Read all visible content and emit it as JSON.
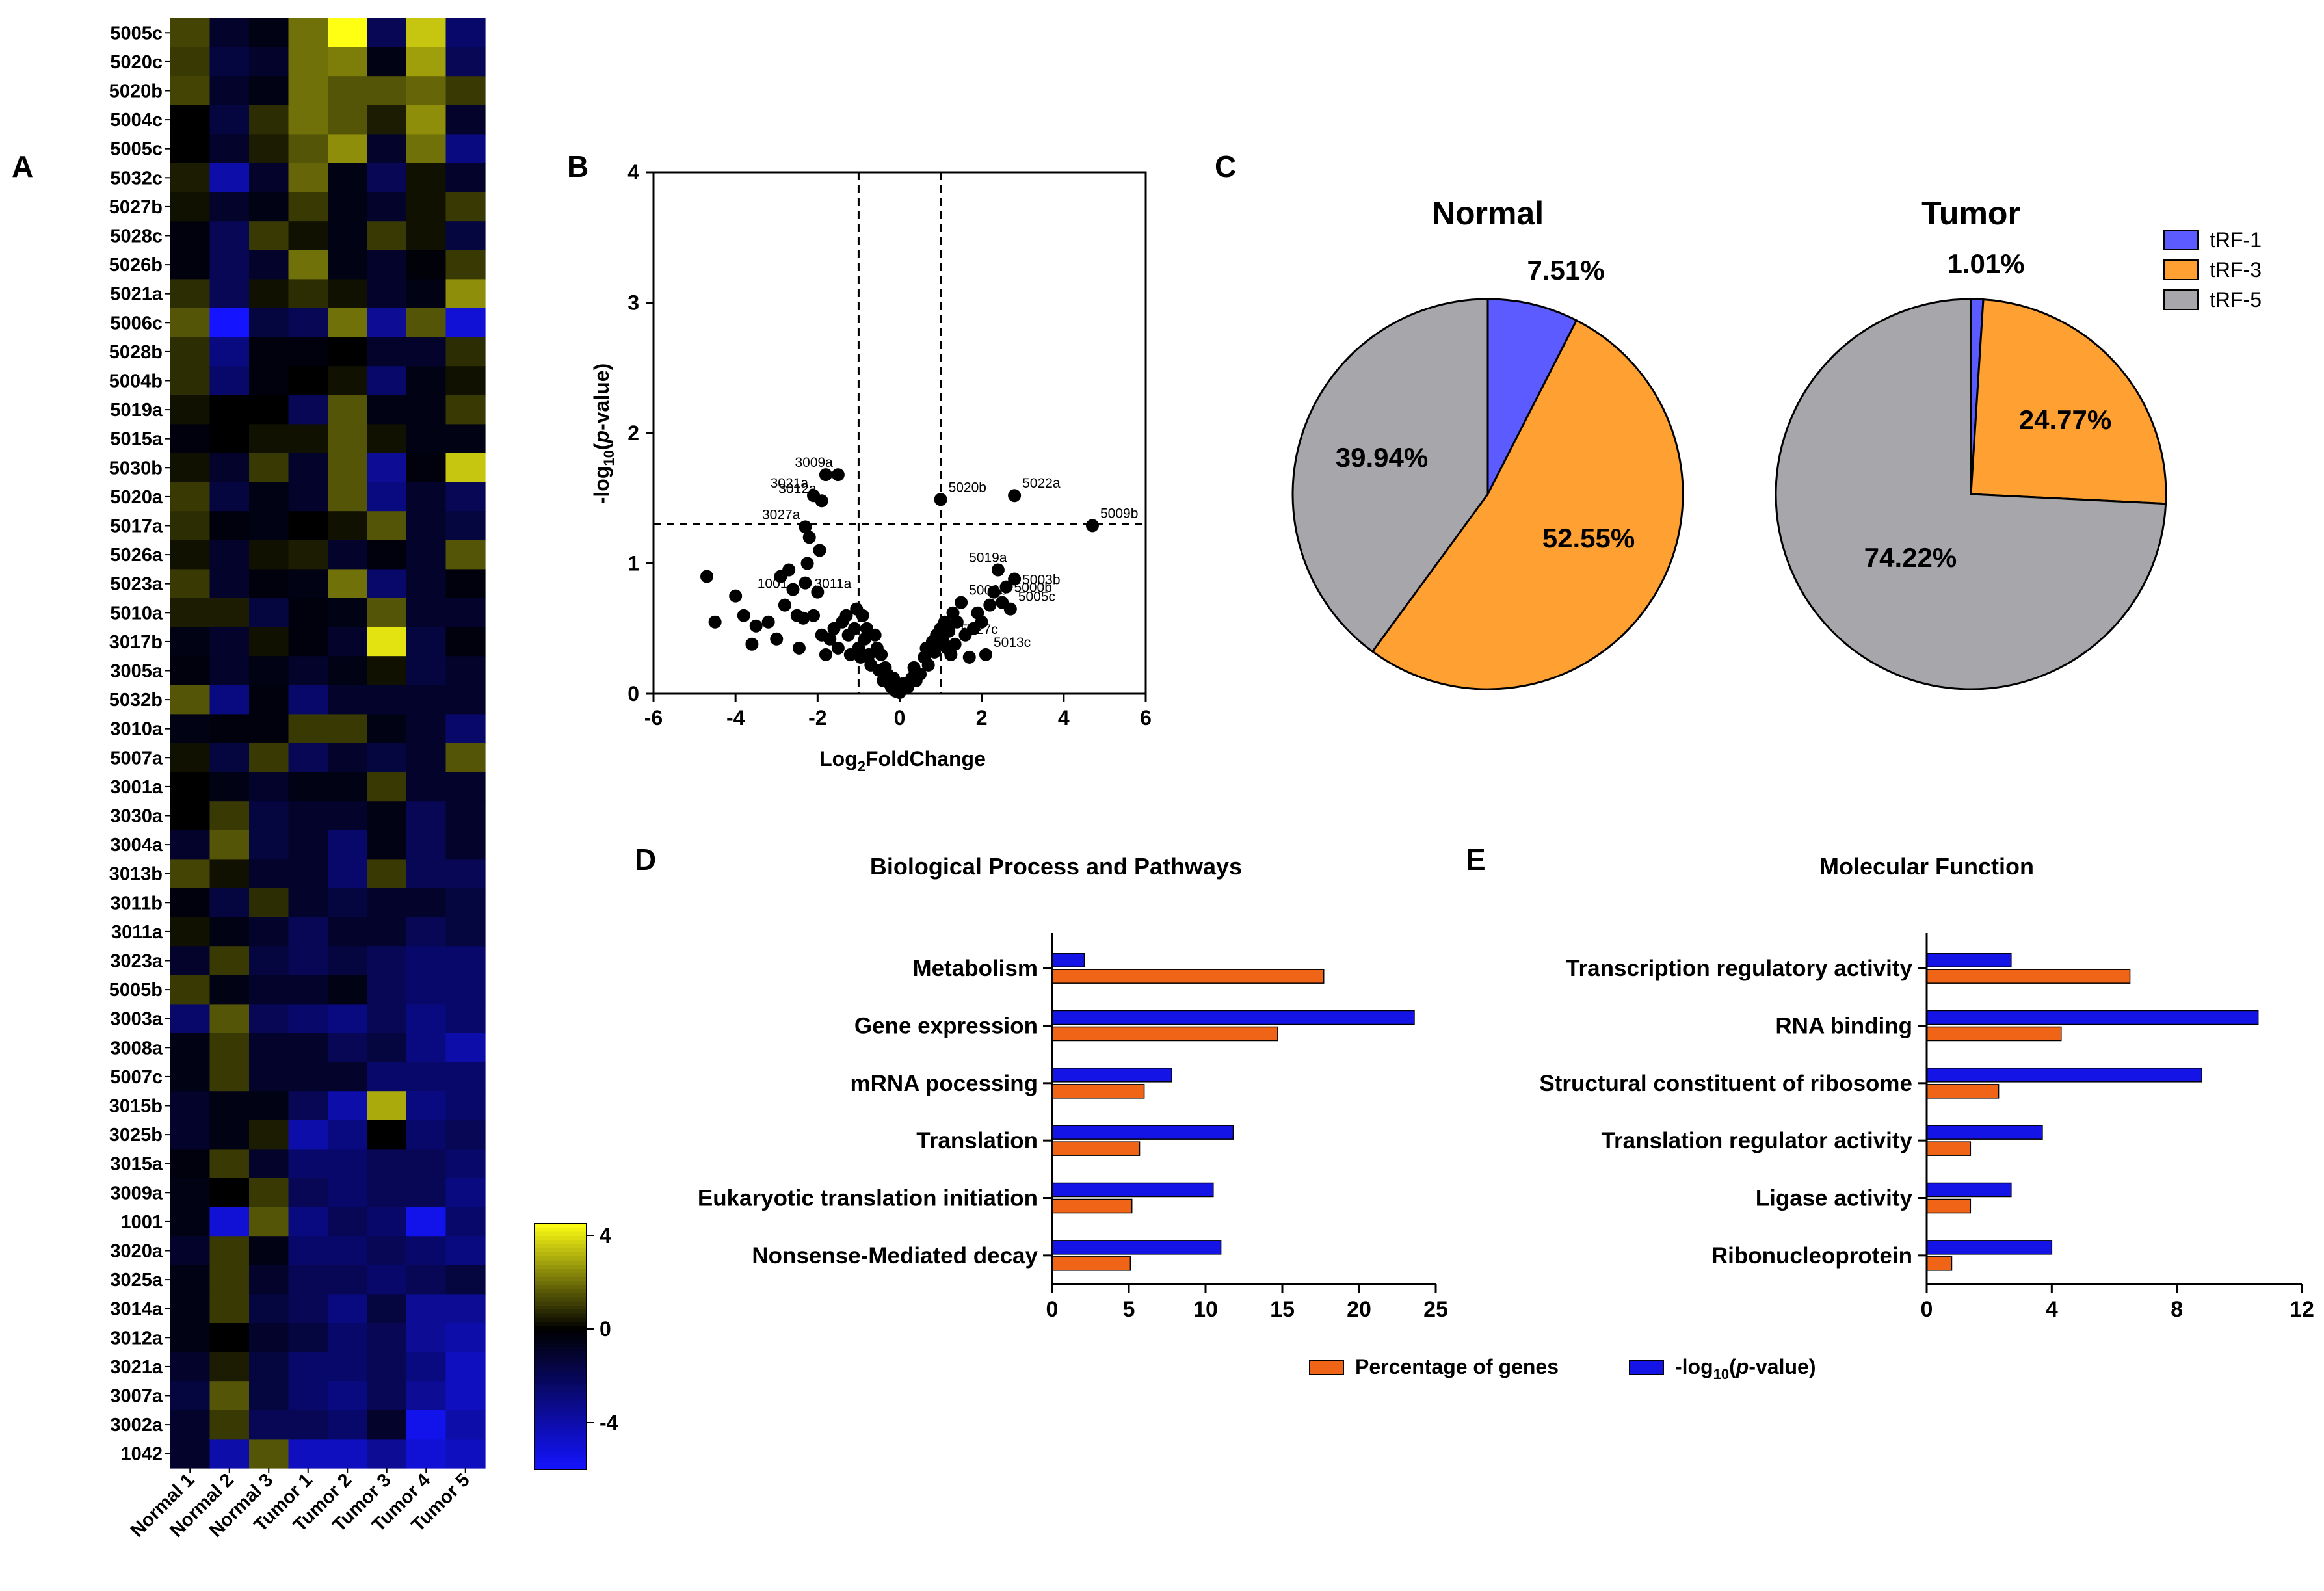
{
  "panel_labels": {
    "a": "A",
    "b": "B",
    "c": "C",
    "d": "D",
    "e": "E"
  },
  "chart_data": [
    {
      "type": "heatmap",
      "panel": "A",
      "rows": [
        "5005c",
        "5020c",
        "5020b",
        "5004c",
        "5005c",
        "5032c",
        "5027b",
        "5028c",
        "5026b",
        "5021a",
        "5006c",
        "5028b",
        "5004b",
        "5019a",
        "5015a",
        "5030b",
        "5020a",
        "5017a",
        "5026a",
        "5023a",
        "5010a",
        "3017b",
        "3005a",
        "5032b",
        "3010a",
        "5007a",
        "3001a",
        "3030a",
        "3004a",
        "3013b",
        "3011b",
        "3011a",
        "3023a",
        "5005b",
        "3003a",
        "3008a",
        "5007c",
        "3015b",
        "3025b",
        "3015a",
        "3009a",
        "1001",
        "3020a",
        "3025a",
        "3014a",
        "3012a",
        "3021a",
        "3007a",
        "3002a",
        "1042"
      ],
      "columns": [
        "Normal 1",
        "Normal 2",
        "Normal 3",
        "Tumor 1",
        "Tumor 2",
        "Tumor 3",
        "Tumor 4",
        "Tumor 5"
      ],
      "values": [
        [
          1.2,
          -1,
          -0.5,
          2,
          4.5,
          -2,
          3.5,
          -2.5
        ],
        [
          1,
          -1.5,
          -1,
          2,
          2.2,
          -0.5,
          2.8,
          -2
        ],
        [
          1.2,
          -1,
          -0.5,
          2,
          1.5,
          1.5,
          1.8,
          1
        ],
        [
          0,
          -1.5,
          0.8,
          2,
          1.5,
          0.5,
          2.5,
          -1
        ],
        [
          0,
          -1,
          0.5,
          1.5,
          2.5,
          -1,
          2,
          -3
        ],
        [
          0.5,
          -4,
          -1,
          1.8,
          -0.5,
          -2,
          0.3,
          -1
        ],
        [
          0.3,
          -1,
          -0.5,
          1,
          -0.5,
          -1,
          0.3,
          1
        ],
        [
          -0.3,
          -2,
          1,
          0.3,
          -0.5,
          1,
          0.3,
          -1.5
        ],
        [
          -0.3,
          -2,
          -1,
          2,
          -0.5,
          -1,
          -0.2,
          1
        ],
        [
          0.8,
          -2,
          0.3,
          0.8,
          0.3,
          -1,
          -0.5,
          2.5
        ],
        [
          1.5,
          -6,
          -1.5,
          -2,
          2,
          -3.5,
          1.5,
          -5
        ],
        [
          0.8,
          -3,
          -0.3,
          -0.3,
          0,
          -1,
          -1,
          0.8
        ],
        [
          0.8,
          -2.5,
          -0.3,
          0,
          0.3,
          -2.5,
          -0.5,
          0.3
        ],
        [
          0.3,
          0,
          0,
          -2,
          1.5,
          -0.5,
          -0.5,
          1
        ],
        [
          -0.3,
          0,
          0.3,
          0.3,
          1.5,
          0.3,
          -0.5,
          -0.5
        ],
        [
          0.3,
          -1,
          1,
          -1,
          1.5,
          -3.5,
          -0.3,
          3.5
        ],
        [
          1,
          -1.5,
          -0.5,
          -1,
          1.5,
          -3,
          -1,
          -2
        ],
        [
          0.8,
          -0.3,
          -0.5,
          0,
          0.3,
          1.5,
          -1,
          -1.5
        ],
        [
          0.3,
          -1,
          0.3,
          0.5,
          -1,
          -0.3,
          -1,
          1.5
        ],
        [
          1,
          -1,
          -0.3,
          -0.5,
          2,
          -2.5,
          -1,
          -0.3
        ],
        [
          0.5,
          0.5,
          -1.5,
          -0.3,
          -0.5,
          1.5,
          -1,
          -1
        ],
        [
          -0.5,
          -1,
          0.3,
          -0.3,
          -1,
          4,
          -1.5,
          -0.3
        ],
        [
          -0.3,
          -1,
          -0.5,
          -1,
          -0.5,
          0.3,
          -1.5,
          -1
        ],
        [
          1.5,
          -3,
          -0.3,
          -2.5,
          -1,
          -1,
          -1,
          -1
        ],
        [
          -0.5,
          -0.3,
          -0.3,
          1,
          1,
          -0.5,
          -1,
          -2.5
        ],
        [
          0.3,
          -1.5,
          1,
          -2,
          -1,
          -1.5,
          -1,
          1.5
        ],
        [
          0,
          -0.5,
          -1,
          -0.5,
          -0.5,
          1,
          -1,
          -1
        ],
        [
          0,
          1,
          -1.5,
          -1,
          -1,
          -0.5,
          -2,
          -1
        ],
        [
          -1,
          1.5,
          -1.5,
          -1,
          -2.5,
          -0.5,
          -2,
          -1
        ],
        [
          1.2,
          0.3,
          -1,
          -1,
          -2.5,
          1,
          -2,
          -2
        ],
        [
          -0.3,
          -1.5,
          0.8,
          -1,
          -1.5,
          -1,
          -1,
          -1.5
        ],
        [
          0.3,
          -0.5,
          -1,
          -2,
          -1,
          -1,
          -2,
          -1.5
        ],
        [
          -1,
          1,
          -1.5,
          -2,
          -1.5,
          -2,
          -2.5,
          -2.5
        ],
        [
          1,
          -0.5,
          -1,
          -1,
          -0.5,
          -2,
          -2.5,
          -2.5
        ],
        [
          -2.5,
          1.5,
          -2,
          -2.5,
          -3,
          -2,
          -3,
          -2.5
        ],
        [
          -0.5,
          1,
          -1,
          -1,
          -2,
          -1.5,
          -3,
          -4
        ],
        [
          -0.5,
          1,
          -1,
          -1,
          -1,
          -2.5,
          -2.5,
          -2.5
        ],
        [
          -1,
          -0.5,
          -0.5,
          -2,
          -4,
          3,
          -3,
          -2.5
        ],
        [
          -1,
          -0.5,
          0.5,
          -4,
          -3,
          0,
          -2.5,
          -2
        ],
        [
          -0.3,
          1,
          -1,
          -2.5,
          -2.5,
          -2,
          -2,
          -2.5
        ],
        [
          -0.5,
          0,
          1,
          -2,
          -2.5,
          -2,
          -2,
          -3
        ],
        [
          -0.5,
          -5,
          1.5,
          -3,
          -2,
          -2.5,
          -5.5,
          -2.5
        ],
        [
          -1,
          1,
          -0.5,
          -2.5,
          -2.5,
          -2,
          -2.5,
          -3
        ],
        [
          -0.5,
          1,
          -1,
          -2,
          -2,
          -2.5,
          -2,
          -1.5
        ],
        [
          -0.5,
          1,
          -1.5,
          -2,
          -3,
          -1.5,
          -3.5,
          -3.5
        ],
        [
          -0.5,
          0,
          -1,
          -1.5,
          -2.5,
          -2,
          -3.5,
          -4
        ],
        [
          -1,
          0.5,
          -1.5,
          -2.5,
          -2.5,
          -2,
          -3,
          -4.5
        ],
        [
          -1.5,
          1.5,
          -1.5,
          -2.5,
          -3,
          -2,
          -3.5,
          -4.5
        ],
        [
          -1,
          1,
          -2,
          -2,
          -2.5,
          -1,
          -5.5,
          -4
        ],
        [
          -1,
          -4,
          1.5,
          -4.5,
          -4.5,
          -3.5,
          -5,
          -4.5
        ]
      ],
      "colorbar": {
        "min": -6,
        "max": 4.5,
        "ticks": [
          4,
          0,
          -4
        ],
        "tick_labels": [
          "4",
          "0",
          "-4"
        ]
      }
    },
    {
      "type": "scatter",
      "panel": "B",
      "xlabel": "Log2FoldChange",
      "ylabel": "-log10(p-value)",
      "xlim": [
        -6,
        6
      ],
      "ylim": [
        0,
        4
      ],
      "xticks": [
        -6,
        -4,
        -2,
        0,
        2,
        4,
        6
      ],
      "yticks": [
        0,
        1,
        2,
        3,
        4
      ],
      "thresholds": {
        "x": [
          -1,
          1
        ],
        "y": 1.3
      },
      "points": [
        [
          -4.7,
          0.9
        ],
        [
          -4.5,
          0.55
        ],
        [
          -4.0,
          0.75
        ],
        [
          -3.8,
          0.6
        ],
        [
          -3.6,
          0.38
        ],
        [
          -3.5,
          0.52
        ],
        [
          -3.2,
          0.55
        ],
        [
          -3.0,
          0.42
        ],
        [
          -2.9,
          0.9
        ],
        [
          -2.8,
          0.68
        ],
        [
          -2.7,
          0.95
        ],
        [
          -2.6,
          0.8
        ],
        [
          -2.5,
          0.6
        ],
        [
          -2.45,
          0.35
        ],
        [
          -2.35,
          0.58
        ],
        [
          -2.3,
          0.85
        ],
        [
          -2.25,
          1.0
        ],
        [
          -2.2,
          1.2
        ],
        [
          -2.1,
          0.6
        ],
        [
          -2.0,
          0.78
        ],
        [
          -1.95,
          1.1
        ],
        [
          -1.9,
          0.45
        ],
        [
          -1.8,
          0.3
        ],
        [
          -1.7,
          0.42
        ],
        [
          -1.6,
          0.5
        ],
        [
          -1.5,
          0.35
        ],
        [
          -1.4,
          0.55
        ],
        [
          -1.3,
          0.6
        ],
        [
          -1.25,
          0.45
        ],
        [
          -1.2,
          0.3
        ],
        [
          -1.1,
          0.5
        ],
        [
          -1.05,
          0.65
        ],
        [
          -1.0,
          0.35
        ],
        [
          -0.95,
          0.28
        ],
        [
          -0.9,
          0.6
        ],
        [
          -0.85,
          0.42
        ],
        [
          -0.8,
          0.5
        ],
        [
          -0.75,
          0.3
        ],
        [
          -0.7,
          0.22
        ],
        [
          -0.6,
          0.45
        ],
        [
          -0.55,
          0.35
        ],
        [
          -0.5,
          0.18
        ],
        [
          -0.45,
          0.3
        ],
        [
          -0.4,
          0.1
        ],
        [
          -0.35,
          0.2
        ],
        [
          -0.3,
          0.15
        ],
        [
          -0.25,
          0.08
        ],
        [
          -0.2,
          0.05
        ],
        [
          -0.15,
          0.12
        ],
        [
          -0.1,
          0.02
        ],
        [
          -0.05,
          0.06
        ],
        [
          0.0,
          0.01
        ],
        [
          0.05,
          0.03
        ],
        [
          0.1,
          0.08
        ],
        [
          0.2,
          0.05
        ],
        [
          0.3,
          0.12
        ],
        [
          0.35,
          0.2
        ],
        [
          0.4,
          0.1
        ],
        [
          0.5,
          0.15
        ],
        [
          0.6,
          0.28
        ],
        [
          0.65,
          0.35
        ],
        [
          0.7,
          0.22
        ],
        [
          0.8,
          0.4
        ],
        [
          0.85,
          0.32
        ],
        [
          0.9,
          0.45
        ],
        [
          0.95,
          0.38
        ],
        [
          1.0,
          0.5
        ],
        [
          1.05,
          0.42
        ],
        [
          1.1,
          0.55
        ],
        [
          1.15,
          0.35
        ],
        [
          1.2,
          0.48
        ],
        [
          1.25,
          0.3
        ],
        [
          1.3,
          0.62
        ],
        [
          1.35,
          0.38
        ],
        [
          1.4,
          0.55
        ],
        [
          1.5,
          0.7
        ],
        [
          1.6,
          0.45
        ],
        [
          1.7,
          0.28
        ],
        [
          1.8,
          0.5
        ],
        [
          1.9,
          0.62
        ],
        [
          2.0,
          0.55
        ],
        [
          2.1,
          0.3
        ],
        [
          2.2,
          0.68
        ],
        [
          2.3,
          0.78
        ],
        [
          2.4,
          0.95
        ],
        [
          2.5,
          0.7
        ],
        [
          2.6,
          0.82
        ],
        [
          2.7,
          0.65
        ],
        [
          2.8,
          0.88
        ],
        [
          -2.3,
          1.28
        ],
        [
          -2.1,
          1.52
        ],
        [
          -1.9,
          1.48
        ],
        [
          -1.8,
          1.68
        ],
        [
          -1.5,
          1.68
        ],
        [
          1.0,
          1.49
        ],
        [
          2.8,
          1.52
        ],
        [
          4.7,
          1.29
        ]
      ],
      "labels": [
        {
          "text": "3021a",
          "x": -2.1,
          "y": 1.52
        },
        {
          "text": "3009a",
          "x": -1.5,
          "y": 1.68
        },
        {
          "text": "3012a",
          "x": -1.9,
          "y": 1.48
        },
        {
          "text": "3027a",
          "x": -2.3,
          "y": 1.28
        },
        {
          "text": "5020b",
          "x": 1.0,
          "y": 1.49
        },
        {
          "text": "5022a",
          "x": 2.8,
          "y": 1.52
        },
        {
          "text": "5009b",
          "x": 4.7,
          "y": 1.29
        },
        {
          "text": "5019a",
          "x": 1.5,
          "y": 0.95
        },
        {
          "text": "3011a",
          "x": -1.05,
          "y": 0.75
        },
        {
          "text": "1001",
          "x": -2.6,
          "y": 0.75
        },
        {
          "text": "5008b",
          "x": 1.5,
          "y": 0.7
        },
        {
          "text": "5003b",
          "x": 2.8,
          "y": 0.78
        },
        {
          "text": "5000b",
          "x": 2.6,
          "y": 0.72
        },
        {
          "text": "5005c",
          "x": 2.7,
          "y": 0.65
        },
        {
          "text": "5027c",
          "x": 1.3,
          "y": 0.4
        },
        {
          "text": "5013c",
          "x": 2.1,
          "y": 0.3
        }
      ]
    },
    {
      "type": "pie",
      "panel": "C",
      "title": "Normal",
      "slices": [
        {
          "name": "tRF-1",
          "value": 7.51,
          "label": "7.51%"
        },
        {
          "name": "tRF-3",
          "value": 52.55,
          "label": "52.55%"
        },
        {
          "name": "tRF-5",
          "value": 39.94,
          "label": "39.94%"
        }
      ]
    },
    {
      "type": "pie",
      "panel": "C",
      "title": "Tumor",
      "slices": [
        {
          "name": "tRF-1",
          "value": 1.01,
          "label": "1.01%"
        },
        {
          "name": "tRF-3",
          "value": 24.77,
          "label": "24.77%"
        },
        {
          "name": "tRF-5",
          "value": 74.22,
          "label": "74.22%"
        }
      ],
      "legend": [
        {
          "name": "tRF-1",
          "color": "#5b5bff"
        },
        {
          "name": "tRF-3",
          "color": "#ffa033"
        },
        {
          "name": "tRF-5",
          "color": "#a6a6ab"
        }
      ]
    },
    {
      "type": "bar",
      "orientation": "horizontal",
      "panel": "D",
      "title": "Biological Process and Pathways",
      "categories": [
        "Metabolism",
        "Gene expression",
        "mRNA pocessing",
        "Translation",
        "Eukaryotic translation initiation",
        "Nonsense-Mediated decay"
      ],
      "series": [
        {
          "name": "-log10(p-value)",
          "color": "#1414e6",
          "values": [
            2.1,
            23.6,
            7.8,
            11.8,
            10.5,
            11.0
          ]
        },
        {
          "name": "Percentage of genes",
          "color": "#f06418",
          "values": [
            17.7,
            14.7,
            6.0,
            5.7,
            5.2,
            5.1
          ]
        }
      ],
      "xlim": [
        0,
        25
      ],
      "xticks": [
        0,
        5,
        10,
        15,
        20,
        25
      ]
    },
    {
      "type": "bar",
      "orientation": "horizontal",
      "panel": "E",
      "title": "Molecular Function",
      "categories": [
        "Transcription regulatory activity",
        "RNA binding",
        "Structural constituent of ribosome",
        "Translation regulator activity",
        "Ligase activity",
        "Ribonucleoprotein"
      ],
      "series": [
        {
          "name": "-log10(p-value)",
          "color": "#1414e6",
          "values": [
            2.7,
            10.6,
            8.8,
            3.7,
            2.7,
            4.0
          ]
        },
        {
          "name": "Percentage of genes",
          "color": "#f06418",
          "values": [
            6.5,
            4.3,
            2.3,
            1.4,
            1.4,
            0.8
          ]
        }
      ],
      "xlim": [
        0,
        12
      ],
      "xticks": [
        0,
        4,
        8,
        12
      ]
    }
  ],
  "colors": {
    "heat_pos": "#ffff14",
    "heat_zero": "#000000",
    "heat_neg": "#1414ff",
    "pie_trf1": "#5b5bff",
    "pie_trf3": "#ffa033",
    "pie_trf5": "#a6a6ab",
    "bar_blue": "#1414e6",
    "bar_orange": "#f06418"
  },
  "bottom_legend": {
    "orange_label": "Percentage of genes",
    "blue_label_prefix": "-log",
    "blue_label_sub": "10",
    "blue_label_open": "(",
    "blue_label_italic": "p",
    "blue_label_suffix": "-value)"
  },
  "volcano_axis_text": {
    "x_main": "Log",
    "x_sub": "2",
    "x_rest": "FoldChange",
    "y_pre": "-log",
    "y_sub": "10",
    "y_open": "(",
    "y_italic": "p",
    "y_rest": "-value)"
  }
}
